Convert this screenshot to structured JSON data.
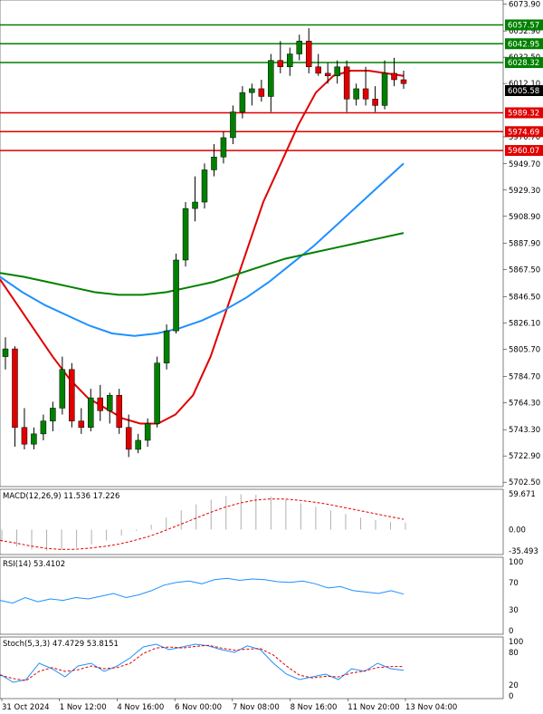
{
  "chart_data": {
    "type": "candlestick",
    "instrument_price": "6005.58",
    "price_axis": {
      "ticks": [
        6073.9,
        6052.9,
        6032.5,
        6012.1,
        5970.7,
        5949.7,
        5929.3,
        5908.9,
        5887.9,
        5867.5,
        5846.5,
        5826.1,
        5805.7,
        5784.7,
        5764.3,
        5743.3,
        5722.9,
        5702.5
      ],
      "ylim": [
        5700.5,
        6075.5
      ]
    },
    "levels": [
      {
        "value": 6057.57,
        "label": "6057.57",
        "color": "#008000"
      },
      {
        "value": 6042.95,
        "label": "6042.95",
        "color": "#008000"
      },
      {
        "value": 6028.32,
        "label": "6028.32",
        "color": "#008000"
      },
      {
        "value": 5989.32,
        "label": "5989.32",
        "color": "#e00000"
      },
      {
        "value": 5974.69,
        "label": "5974.69",
        "color": "#e00000"
      },
      {
        "value": 5960.07,
        "label": "5960.07",
        "color": "#e00000"
      }
    ],
    "time_labels": [
      "31 Oct 2024",
      "1 Nov 12:00",
      "4 Nov 16:00",
      "6 Nov 00:00",
      "7 Nov 08:00",
      "8 Nov 16:00",
      "11 Nov 20:00",
      "13 Nov 04:00"
    ],
    "candles": [
      [
        5800,
        5815,
        5790,
        5806
      ],
      [
        5806,
        5808,
        5730,
        5745
      ],
      [
        5745,
        5760,
        5728,
        5732
      ],
      [
        5732,
        5745,
        5728,
        5740
      ],
      [
        5740,
        5755,
        5735,
        5750
      ],
      [
        5750,
        5765,
        5742,
        5760
      ],
      [
        5760,
        5800,
        5755,
        5790
      ],
      [
        5790,
        5795,
        5745,
        5750
      ],
      [
        5750,
        5760,
        5740,
        5745
      ],
      [
        5745,
        5775,
        5742,
        5768
      ],
      [
        5768,
        5778,
        5750,
        5758
      ],
      [
        5758,
        5772,
        5748,
        5770
      ],
      [
        5770,
        5775,
        5740,
        5745
      ],
      [
        5745,
        5755,
        5722,
        5728
      ],
      [
        5728,
        5740,
        5725,
        5735
      ],
      [
        5735,
        5752,
        5730,
        5748
      ],
      [
        5748,
        5800,
        5745,
        5795
      ],
      [
        5795,
        5825,
        5790,
        5820
      ],
      [
        5820,
        5880,
        5818,
        5875
      ],
      [
        5875,
        5920,
        5870,
        5915
      ],
      [
        5915,
        5940,
        5905,
        5920
      ],
      [
        5920,
        5950,
        5915,
        5945
      ],
      [
        5945,
        5965,
        5940,
        5955
      ],
      [
        5955,
        5975,
        5950,
        5970
      ],
      [
        5970,
        5995,
        5965,
        5990
      ],
      [
        5990,
        6010,
        5985,
        6005
      ],
      [
        6005,
        6012,
        5995,
        6008
      ],
      [
        6008,
        6015,
        5998,
        6002
      ],
      [
        6002,
        6035,
        5990,
        6030
      ],
      [
        6030,
        6045,
        6020,
        6025
      ],
      [
        6025,
        6040,
        6018,
        6035
      ],
      [
        6035,
        6050,
        6030,
        6045
      ],
      [
        6045,
        6055,
        6020,
        6025
      ],
      [
        6025,
        6035,
        6018,
        6020
      ],
      [
        6020,
        6028,
        6012,
        6018
      ],
      [
        6018,
        6030,
        6012,
        6025
      ],
      [
        6025,
        6030,
        5990,
        6000
      ],
      [
        6000,
        6012,
        5995,
        6008
      ],
      [
        6008,
        6025,
        5995,
        6000
      ],
      [
        6000,
        6010,
        5990,
        5995
      ],
      [
        5995,
        6030,
        5992,
        6020
      ],
      [
        6020,
        6032,
        6010,
        6015
      ],
      [
        6015,
        6022,
        6008,
        6012
      ]
    ],
    "series": [
      {
        "values": [
          5860,
          5840,
          5820,
          5800,
          5782,
          5768,
          5760,
          5752,
          5748,
          5748,
          5755,
          5770,
          5800,
          5840,
          5880,
          5920,
          5950,
          5980,
          6005,
          6018,
          6022,
          6022,
          6020,
          6018
        ],
        "color": "#e00000"
      },
      {
        "values": [
          5862,
          5850,
          5840,
          5832,
          5824,
          5818,
          5816,
          5818,
          5822,
          5828,
          5836,
          5846,
          5858,
          5872,
          5886,
          5902,
          5918,
          5934,
          5950
        ],
        "color": "#1e90ff"
      },
      {
        "values": [
          5865,
          5862,
          5858,
          5854,
          5850,
          5848,
          5848,
          5850,
          5854,
          5858,
          5864,
          5870,
          5876,
          5880,
          5884,
          5888,
          5892,
          5896
        ],
        "color": "#008000"
      }
    ]
  },
  "macd": {
    "label": "MACD(12,26,9) 11.536 17.226",
    "ticks": [
      "59.671",
      "0.00",
      "-35.493"
    ],
    "histogram": [
      -20,
      -28,
      -33,
      -35,
      -34,
      -30,
      -25,
      -18,
      -10,
      -2,
      8,
      20,
      32,
      42,
      50,
      56,
      59,
      58,
      55,
      50,
      44,
      38,
      32,
      26,
      20,
      16,
      13,
      11.5
    ],
    "signal": [
      -18,
      -22,
      -27,
      -31,
      -33,
      -33,
      -31,
      -28,
      -24,
      -18,
      -11,
      -2,
      8,
      18,
      28,
      37,
      44,
      49,
      51,
      51,
      49,
      46,
      42,
      37,
      32,
      27,
      22,
      17.2
    ]
  },
  "rsi": {
    "label": "RSI(14) 53.4102",
    "ticks": [
      "100",
      "70",
      "30",
      "0"
    ],
    "values": [
      44,
      40,
      48,
      42,
      46,
      44,
      48,
      46,
      50,
      54,
      48,
      52,
      58,
      66,
      70,
      72,
      68,
      74,
      76,
      73,
      75,
      74,
      71,
      70,
      72,
      68,
      62,
      64,
      58,
      56,
      54,
      58,
      53
    ]
  },
  "stoch": {
    "label": "Stoch(5,3,3) 47.4729 53.8151",
    "ticks": [
      "100",
      "80",
      "20",
      "0"
    ],
    "k": [
      40,
      25,
      30,
      60,
      50,
      35,
      55,
      60,
      45,
      55,
      70,
      90,
      95,
      85,
      90,
      95,
      92,
      85,
      80,
      92,
      85,
      60,
      40,
      30,
      35,
      40,
      30,
      50,
      45,
      60,
      50,
      47
    ],
    "d": [
      38,
      32,
      28,
      45,
      52,
      45,
      48,
      55,
      50,
      52,
      60,
      78,
      88,
      90,
      88,
      91,
      93,
      88,
      84,
      86,
      87,
      75,
      55,
      38,
      33,
      36,
      35,
      42,
      46,
      52,
      54,
      54
    ]
  }
}
